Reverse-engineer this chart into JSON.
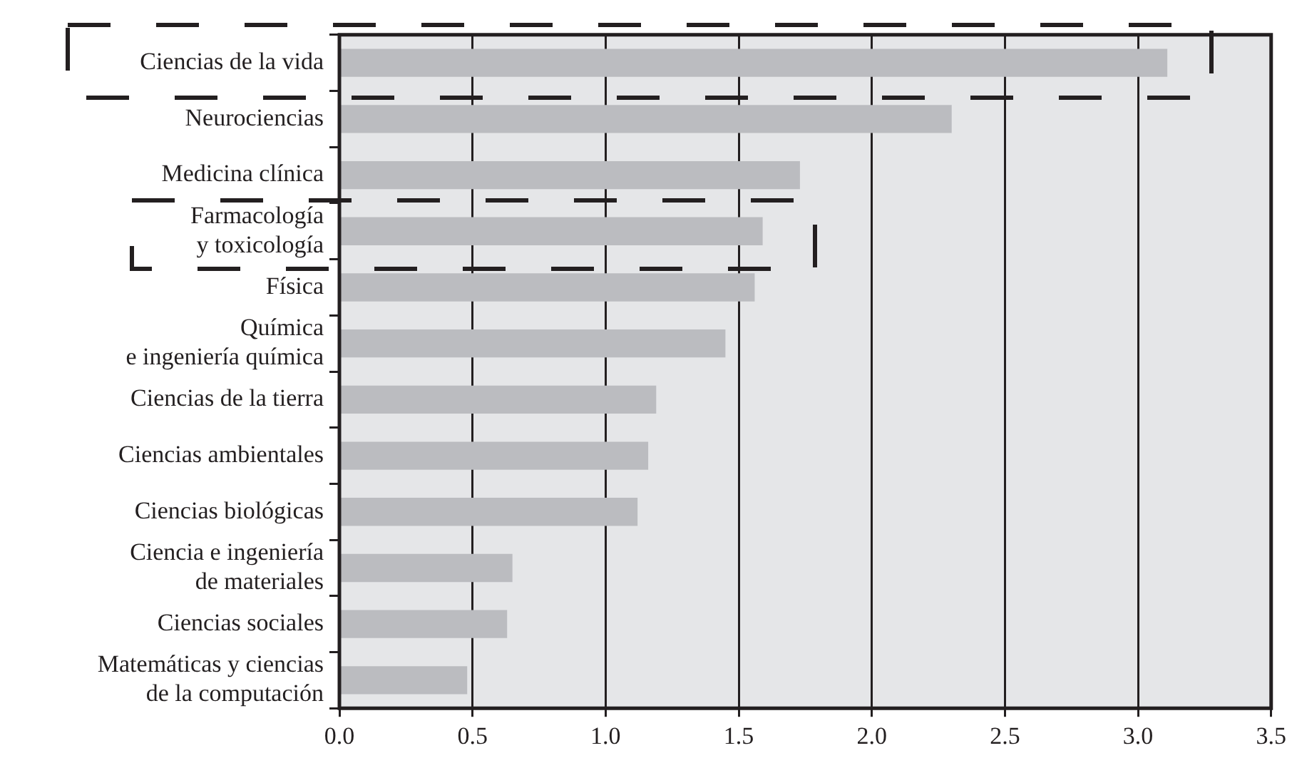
{
  "chart_data": {
    "type": "bar",
    "orientation": "horizontal",
    "categories": [
      "Ciencias de la vida",
      "Neurociencias",
      "Medicina clínica",
      "Farmacología\ny toxicología",
      "Física",
      "Química\ne ingeniería química",
      "Ciencias de la tierra",
      "Ciencias ambientales",
      "Ciencias biológicas",
      "Ciencia e ingeniería\nde materiales",
      "Ciencias sociales",
      "Matemáticas y ciencias\nde la computación"
    ],
    "values": [
      3.11,
      2.3,
      1.73,
      1.59,
      1.56,
      1.45,
      1.19,
      1.16,
      1.12,
      0.65,
      0.63,
      0.48
    ],
    "color": "#bbbcc0",
    "xlim": [
      0,
      3.5
    ],
    "xticks": [
      {
        "value": 0,
        "label": "0.0"
      },
      {
        "value": 0.5,
        "label": "0.5"
      },
      {
        "value": 1,
        "label": "1.0"
      },
      {
        "value": 1.5,
        "label": "1.5"
      },
      {
        "value": 2,
        "label": "2.0"
      },
      {
        "value": 2.5,
        "label": "2.5"
      },
      {
        "value": 3,
        "label": "3.0"
      },
      {
        "value": 3.5,
        "label": "3.5"
      }
    ],
    "grid": "x",
    "legend": false
  }
}
